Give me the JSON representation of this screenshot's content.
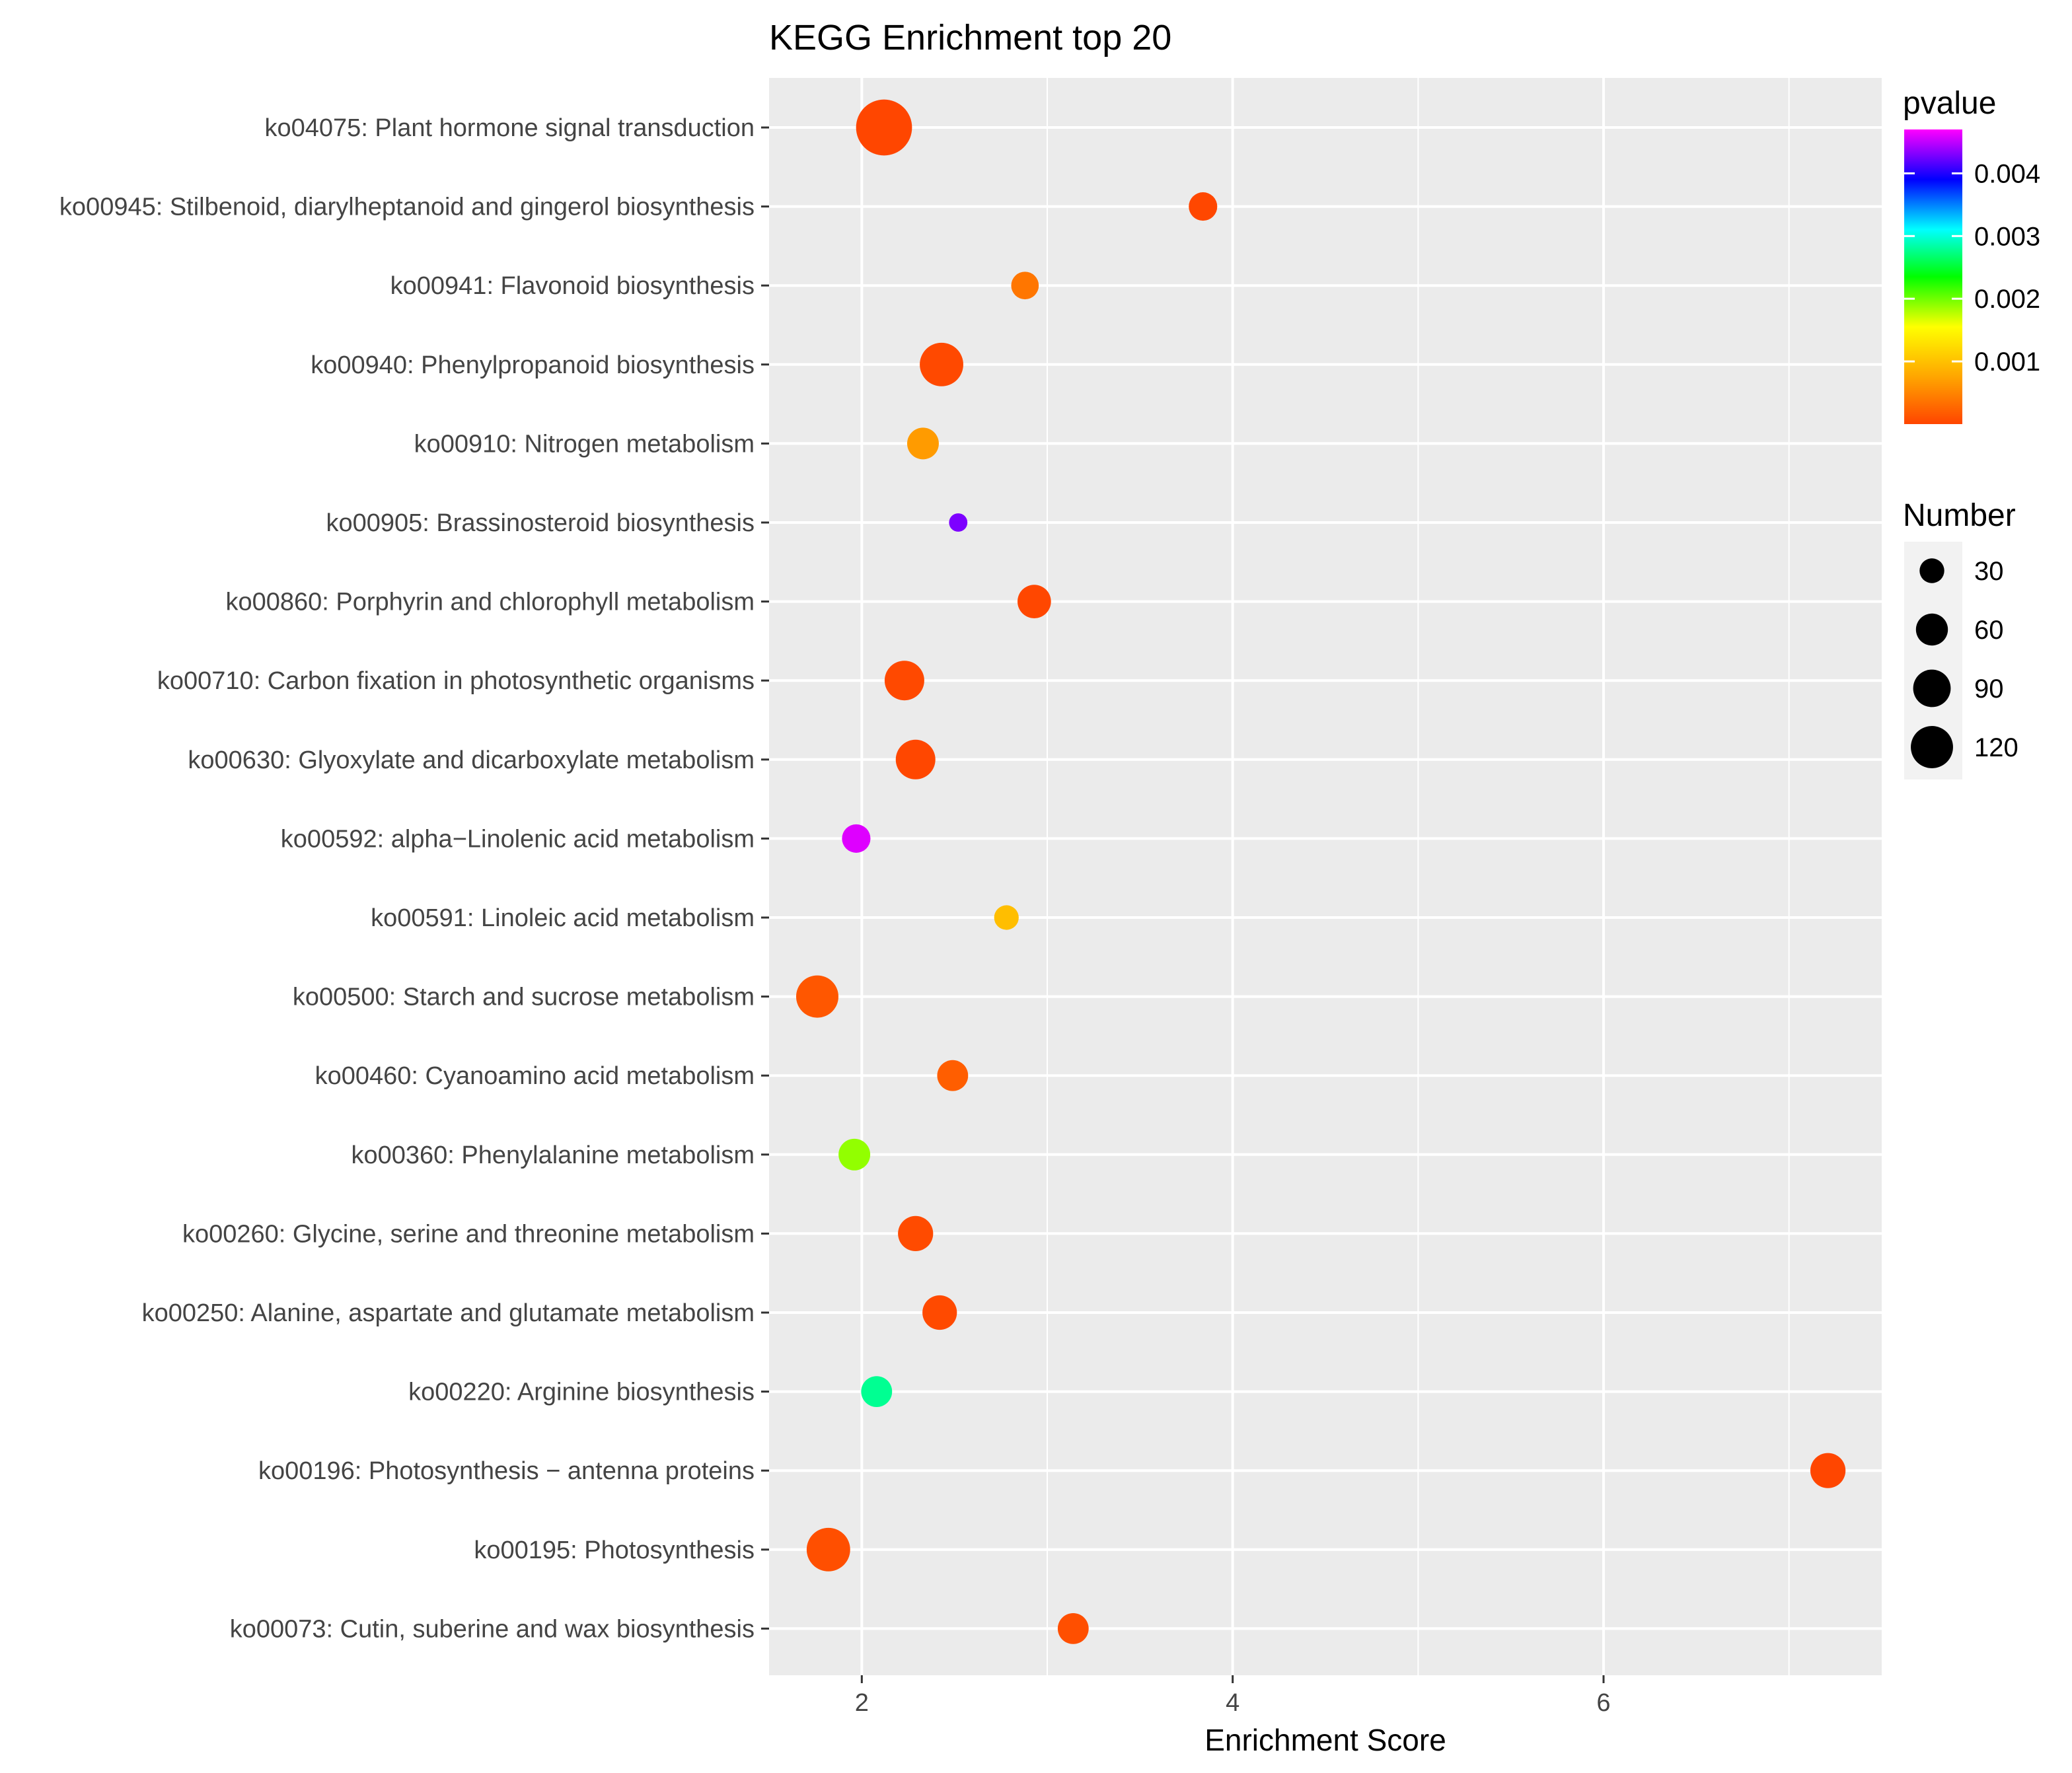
{
  "chart_data": {
    "type": "scatter",
    "title": "KEGG Enrichment top 20",
    "xlabel": "Enrichment Score",
    "ylabel": "",
    "xlim": [
      1.5,
      7.5
    ],
    "xticks": [
      2,
      4,
      6
    ],
    "xtick_labels": [
      "2",
      "4",
      "6"
    ],
    "grid": true,
    "categories": [
      "ko04075: Plant hormone signal transduction",
      "ko00945: Stilbenoid, diarylheptanoid and gingerol biosynthesis",
      "ko00941: Flavonoid biosynthesis",
      "ko00940: Phenylpropanoid biosynthesis",
      "ko00910: Nitrogen metabolism",
      "ko00905: Brassinosteroid biosynthesis",
      "ko00860: Porphyrin and chlorophyll metabolism",
      "ko00710: Carbon fixation in photosynthetic organisms",
      "ko00630: Glyoxylate and dicarboxylate metabolism",
      "ko00592: alpha−Linolenic acid metabolism",
      "ko00591: Linoleic acid metabolism",
      "ko00500: Starch and sucrose metabolism",
      "ko00460: Cyanoamino acid metabolism",
      "ko00360: Phenylalanine metabolism",
      "ko00260: Glycine, serine and threonine metabolism",
      "ko00250: Alanine, aspartate and glutamate metabolism",
      "ko00220: Arginine biosynthesis",
      "ko00196: Photosynthesis − antenna proteins",
      "ko00195: Photosynthesis",
      "ko00073: Cutin, suberine and wax biosynthesis"
    ],
    "points": [
      {
        "x": 2.12,
        "number": 130,
        "pvalue": 1e-05
      },
      {
        "x": 3.84,
        "number": 22,
        "pvalue": 2e-05
      },
      {
        "x": 2.88,
        "number": 20,
        "pvalue": 0.0004
      },
      {
        "x": 2.43,
        "number": 70,
        "pvalue": 3e-05
      },
      {
        "x": 2.33,
        "number": 30,
        "pvalue": 0.0007
      },
      {
        "x": 2.52,
        "number": 5,
        "pvalue": 0.0043
      },
      {
        "x": 2.93,
        "number": 35,
        "pvalue": 2e-05
      },
      {
        "x": 2.23,
        "number": 55,
        "pvalue": 3e-05
      },
      {
        "x": 2.29,
        "number": 55,
        "pvalue": 2e-05
      },
      {
        "x": 1.97,
        "number": 22,
        "pvalue": 0.0046
      },
      {
        "x": 2.78,
        "number": 14,
        "pvalue": 0.001
      },
      {
        "x": 1.76,
        "number": 65,
        "pvalue": 0.00015
      },
      {
        "x": 2.49,
        "number": 28,
        "pvalue": 0.0002
      },
      {
        "x": 1.96,
        "number": 30,
        "pvalue": 0.0019
      },
      {
        "x": 2.29,
        "number": 40,
        "pvalue": 5e-05
      },
      {
        "x": 2.42,
        "number": 38,
        "pvalue": 4e-05
      },
      {
        "x": 2.08,
        "number": 28,
        "pvalue": 0.0028
      },
      {
        "x": 7.21,
        "number": 40,
        "pvalue": 1e-05
      },
      {
        "x": 1.82,
        "number": 70,
        "pvalue": 8e-05
      },
      {
        "x": 3.14,
        "number": 28,
        "pvalue": 8e-05
      }
    ],
    "color_legend": {
      "title": "pvalue",
      "range": [
        0,
        0.0047
      ],
      "ticks": [
        0.001,
        0.002,
        0.003,
        0.004
      ],
      "tick_labels": [
        "0.001",
        "0.002",
        "0.003",
        "0.004"
      ],
      "colors": [
        "#ff4500",
        "#ffa500",
        "#ffff00",
        "#00ff00",
        "#00ffff",
        "#0000ff",
        "#ff00ff"
      ]
    },
    "size_legend": {
      "title": "Number",
      "values": [
        30,
        60,
        90,
        120
      ],
      "labels": [
        "30",
        "60",
        "90",
        "120"
      ]
    },
    "legend_position": "right"
  },
  "colors": {
    "panel_bg": "#ebebeb",
    "grid": "#ffffff",
    "point_outline": "none"
  }
}
